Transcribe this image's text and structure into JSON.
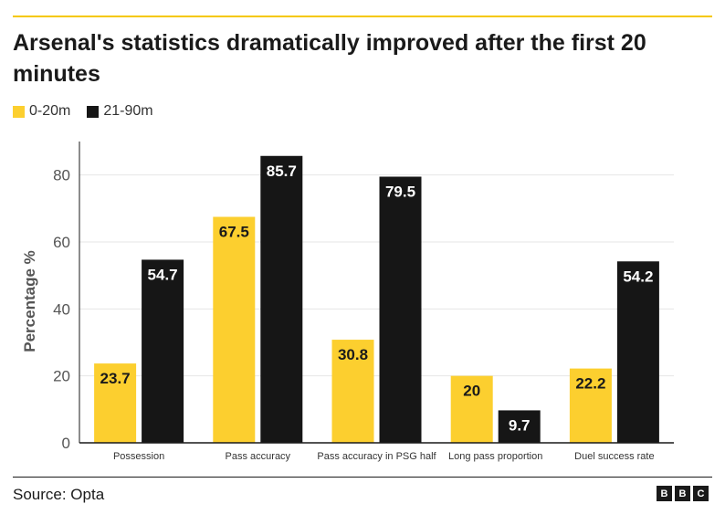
{
  "title": "Arsenal's statistics dramatically improved after the first 20 minutes",
  "source": "Source: Opta",
  "logo": [
    "B",
    "B",
    "C"
  ],
  "colors": {
    "series1": "#fccf2f",
    "series2": "#161616",
    "accent_rule": "#f5c800"
  },
  "chart_data": {
    "type": "bar",
    "title": "Arsenal's statistics dramatically improved after the first 20 minutes",
    "ylabel": "Percentage %",
    "xlabel": "",
    "ylim": [
      0,
      90
    ],
    "yticks": [
      0,
      20,
      40,
      60,
      80
    ],
    "grid": true,
    "legend_position": "top-left",
    "categories": [
      "Possession",
      "Pass accuracy",
      "Pass accuracy in PSG half",
      "Long pass proportion",
      "Duel success rate"
    ],
    "series": [
      {
        "name": "0-20m",
        "color": "#fccf2f",
        "values": [
          23.7,
          67.5,
          30.8,
          20,
          22.2
        ]
      },
      {
        "name": "21-90m",
        "color": "#161616",
        "values": [
          54.7,
          85.7,
          79.5,
          9.7,
          54.2
        ]
      }
    ]
  }
}
